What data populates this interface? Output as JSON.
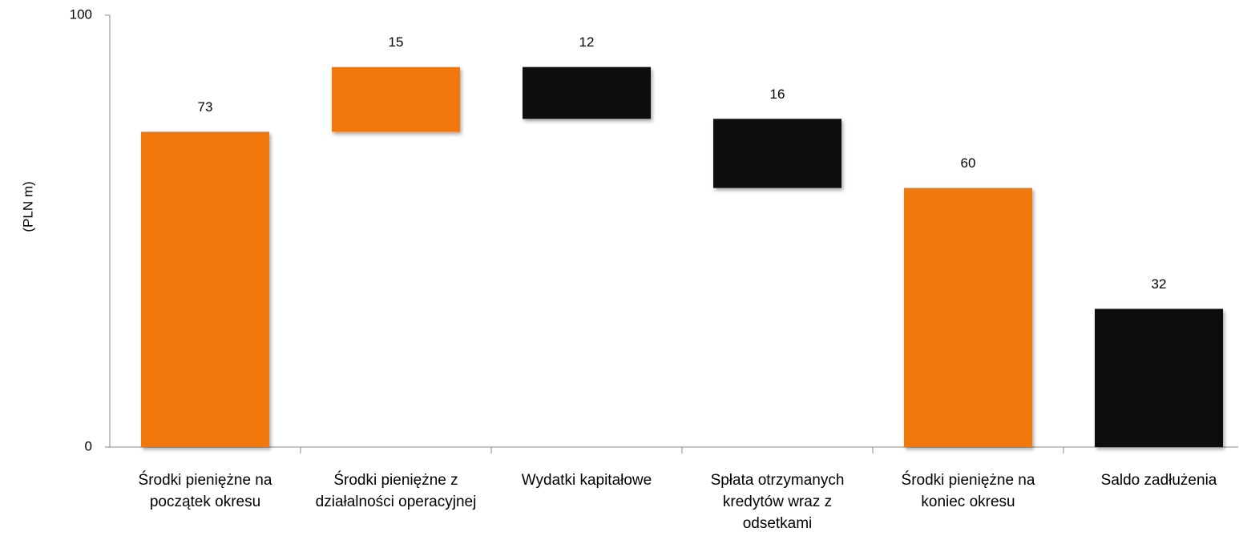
{
  "chart_data": {
    "type": "waterfall",
    "y_label": "(PLN m)",
    "categories": [
      "Środki pieniężne na początek okresu",
      "Środki pieniężne z działalności operacyjnej",
      "Wydatki kapitałowe",
      "Spłata otrzymanych kredytów wraz z odsetkami",
      "Środki pieniężne na koniec okresu",
      "Saldo zadłużenia"
    ],
    "values": [
      73,
      15,
      12,
      16,
      60,
      32
    ],
    "measures": [
      "total",
      "increase",
      "decrease",
      "decrease",
      "total",
      "total"
    ],
    "colors": [
      "#f07810",
      "#f07810",
      "#0a0a0a",
      "#0a0a0a",
      "#f07810",
      "#0a0a0a"
    ],
    "ylim": [
      0,
      100
    ],
    "yticks": [
      0,
      100
    ],
    "grid": false
  }
}
